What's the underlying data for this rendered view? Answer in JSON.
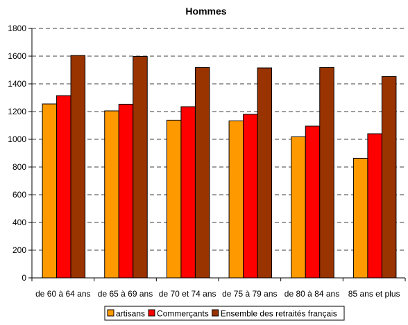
{
  "chart_data": {
    "type": "bar",
    "title": "Hommes",
    "xlabel": "",
    "ylabel": "",
    "categories": [
      "de 60 à 64 ans",
      "de 65 à 69 ans",
      "de 70 et 74 ans",
      "de 75 à 79 ans",
      "de 80 à 84 ans",
      "85 ans et plus"
    ],
    "series": [
      {
        "name": "artisans",
        "color": "#ff9900",
        "values": [
          1255,
          1205,
          1138,
          1133,
          1018,
          863
        ]
      },
      {
        "name": "Commerçants",
        "color": "#ff0000",
        "values": [
          1315,
          1253,
          1235,
          1180,
          1095,
          1040
        ]
      },
      {
        "name": "Ensemble des retraités français",
        "color": "#993300",
        "values": [
          1605,
          1598,
          1518,
          1515,
          1518,
          1453
        ]
      }
    ],
    "ylim": [
      0,
      1800
    ],
    "yticks": [
      0,
      200,
      400,
      600,
      800,
      1000,
      1200,
      1400,
      1600,
      1800
    ],
    "grid": "horizontal-dashed",
    "legend": "bottom"
  }
}
